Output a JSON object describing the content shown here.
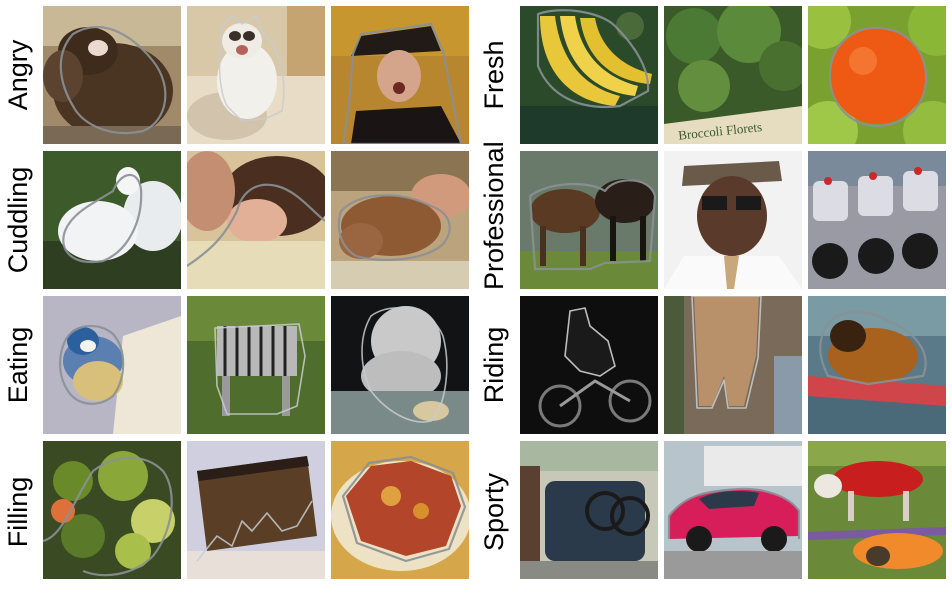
{
  "rows": [
    {
      "label": "Angry"
    },
    {
      "label": "Cuddling"
    },
    {
      "label": "Eating"
    },
    {
      "label": "Filling"
    },
    {
      "label": "Fresh"
    },
    {
      "label": "Professional"
    },
    {
      "label": "Riding"
    },
    {
      "label": "Sporty"
    }
  ],
  "tiles": {
    "fresh_broccoli_sign": "Broccoli Florets"
  }
}
